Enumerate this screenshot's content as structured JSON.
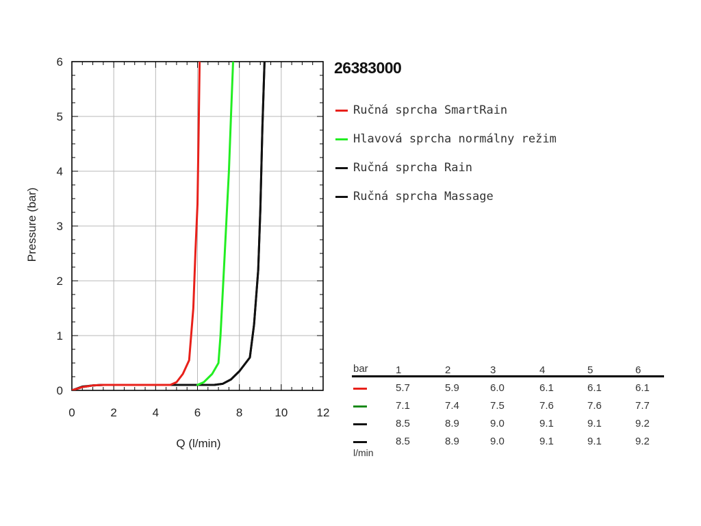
{
  "title": "26383000",
  "chart_data": {
    "type": "line",
    "xlabel": "Q (l/min)",
    "ylabel": "Pressure (bar)",
    "xlim": [
      0,
      12
    ],
    "ylim": [
      0,
      6
    ],
    "xticks": [
      "0",
      "2",
      "4",
      "6",
      "8",
      "10",
      "12"
    ],
    "yticks": [
      "0",
      "1",
      "2",
      "3",
      "4",
      "5",
      "6"
    ],
    "grid": true,
    "legend_position": "right",
    "series": [
      {
        "name": "Ručná sprcha SmartRain",
        "color": "#e8201a",
        "points": [
          [
            0,
            0
          ],
          [
            0.5,
            0.06
          ],
          [
            1,
            0.09
          ],
          [
            1.5,
            0.1
          ],
          [
            2,
            0.1
          ],
          [
            4.7,
            0.1
          ],
          [
            5.0,
            0.15
          ],
          [
            5.3,
            0.3
          ],
          [
            5.6,
            0.55
          ],
          [
            5.8,
            1.5
          ],
          [
            5.9,
            2.5
          ],
          [
            6.0,
            3.4
          ],
          [
            6.05,
            4.6
          ],
          [
            6.1,
            6.0
          ]
        ]
      },
      {
        "name": "Hlavová sprcha normálny režim",
        "color": "#22ee22",
        "points": [
          [
            6.0,
            0.1
          ],
          [
            6.3,
            0.15
          ],
          [
            6.7,
            0.3
          ],
          [
            7.0,
            0.5
          ],
          [
            7.1,
            1.0
          ],
          [
            7.3,
            2.5
          ],
          [
            7.5,
            4.0
          ],
          [
            7.6,
            5.0
          ],
          [
            7.7,
            6.0
          ]
        ]
      },
      {
        "name": "Ručná sprcha Rain",
        "color": "#111111",
        "points": [
          [
            0,
            0
          ],
          [
            0.5,
            0.06
          ],
          [
            1,
            0.09
          ],
          [
            1.5,
            0.1
          ],
          [
            2,
            0.1
          ],
          [
            6.8,
            0.1
          ],
          [
            7.2,
            0.12
          ],
          [
            7.6,
            0.2
          ],
          [
            8.0,
            0.35
          ],
          [
            8.5,
            0.6
          ],
          [
            8.7,
            1.2
          ],
          [
            8.9,
            2.2
          ],
          [
            9.0,
            3.3
          ],
          [
            9.1,
            4.8
          ],
          [
            9.2,
            6.0
          ]
        ]
      },
      {
        "name": "Ručná sprcha Massage",
        "color": "#111111",
        "points": [
          [
            0,
            0
          ],
          [
            0.5,
            0.07
          ],
          [
            1,
            0.09
          ],
          [
            1.5,
            0.1
          ],
          [
            2,
            0.1
          ],
          [
            6.8,
            0.1
          ],
          [
            7.2,
            0.12
          ],
          [
            7.6,
            0.2
          ],
          [
            8.0,
            0.35
          ],
          [
            8.5,
            0.6
          ],
          [
            8.7,
            1.2
          ],
          [
            8.9,
            2.2
          ],
          [
            9.0,
            3.3
          ],
          [
            9.1,
            4.8
          ],
          [
            9.2,
            6.0
          ]
        ]
      }
    ]
  },
  "table": {
    "header_label": "bar",
    "unit_label": "l/min",
    "pressures": [
      "1",
      "2",
      "3",
      "4",
      "5",
      "6"
    ],
    "rows": [
      {
        "color": "#e8201a",
        "values": [
          "5.7",
          "5.9",
          "6.0",
          "6.1",
          "6.1",
          "6.1"
        ]
      },
      {
        "color": "#1a8a1a",
        "values": [
          "7.1",
          "7.4",
          "7.5",
          "7.6",
          "7.6",
          "7.7"
        ]
      },
      {
        "color": "#111111",
        "values": [
          "8.5",
          "8.9",
          "9.0",
          "9.1",
          "9.1",
          "9.2"
        ]
      },
      {
        "color": "#111111",
        "values": [
          "8.5",
          "8.9",
          "9.0",
          "9.1",
          "9.1",
          "9.2"
        ]
      }
    ]
  }
}
